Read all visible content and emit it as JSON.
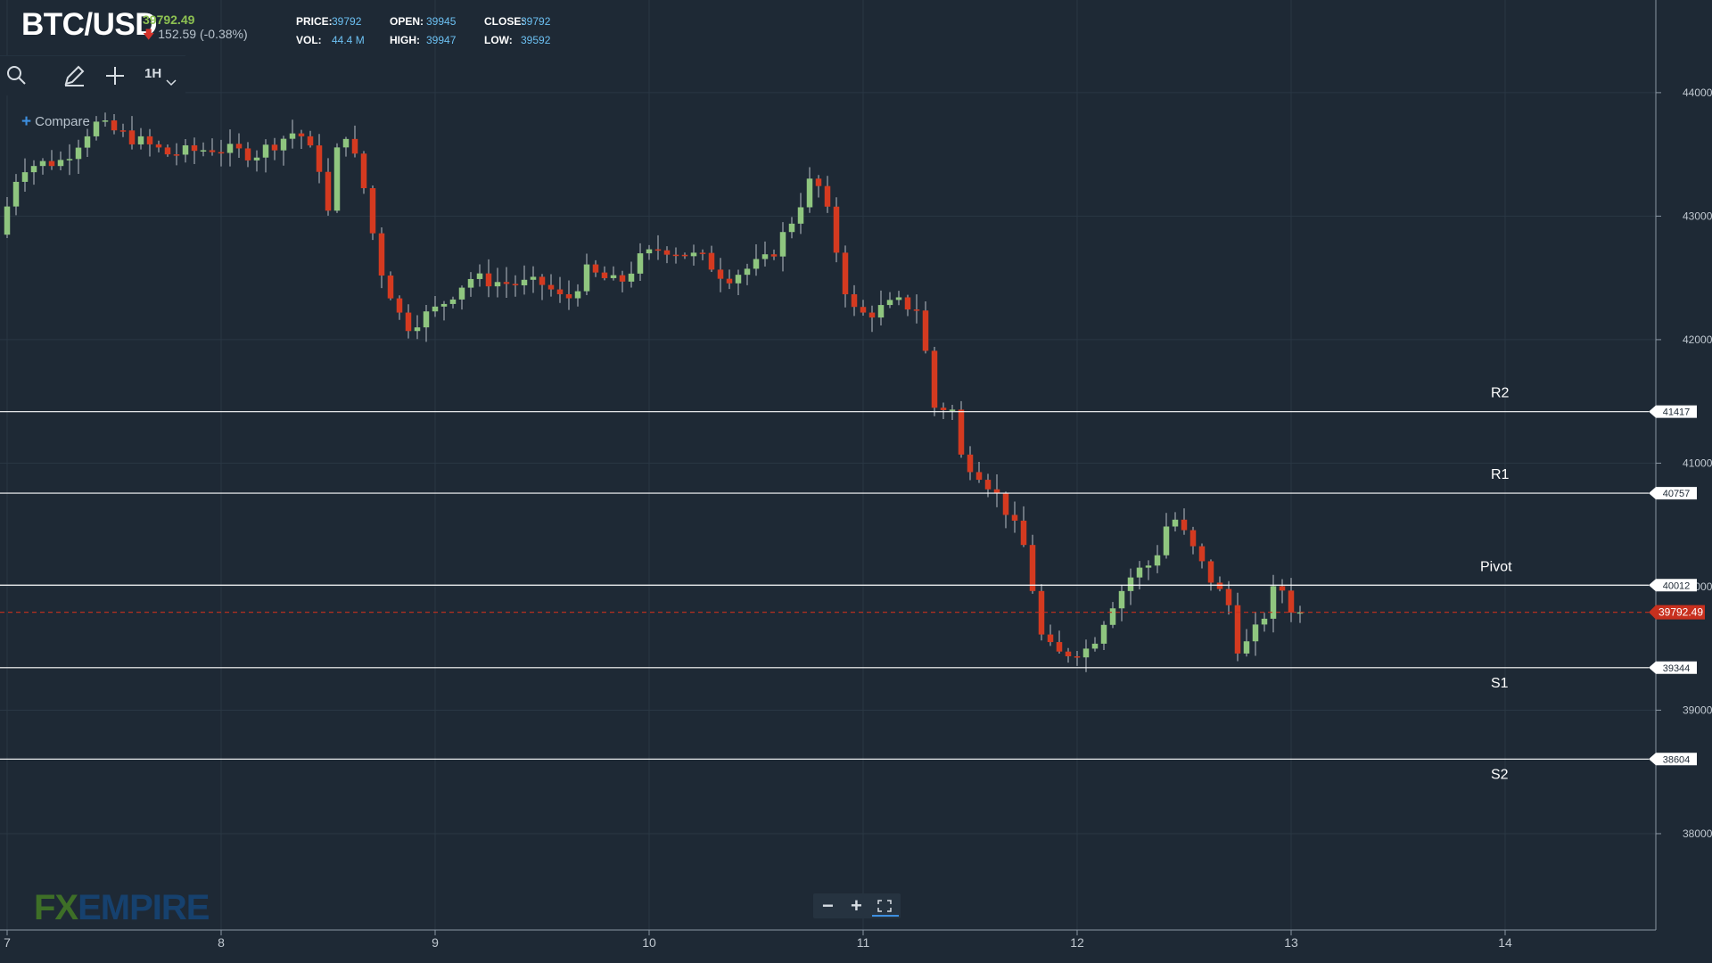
{
  "header": {
    "symbol": "BTC/USD",
    "last_price": "39792.49",
    "change": "152.59 (-0.38%)",
    "stats": {
      "price_label": "PRICE:",
      "price_value": "39792",
      "open_label": "OPEN:",
      "open_value": "39945",
      "close_label": "CLOSE:",
      "close_value": "39792",
      "vol_label": "VOL:",
      "vol_value": "44.4 M",
      "high_label": "HIGH:",
      "high_value": "39947",
      "low_label": "LOW:",
      "low_value": "39592"
    }
  },
  "toolbar": {
    "search_icon": "search-icon",
    "draw_icon": "pencil-icon",
    "crosshair_icon": "plus-icon",
    "interval_label": "1H",
    "interval_icon": "chevron-down-icon",
    "compare_label": "Compare"
  },
  "zoom_controls": {
    "zoom_out": "−",
    "zoom_in": "+",
    "fullscreen_icon": "fullscreen-icon"
  },
  "logo": {
    "part1": "FX",
    "part2": "EMPIRE"
  },
  "colors": {
    "background": "#1e2935",
    "up_candle": "#8fc67f",
    "down_candle": "#d43a20",
    "level_line": "#ffffff",
    "current_price": "#c8301e",
    "axis_text": "#c0c8d0"
  },
  "chart_data": {
    "type": "candlestick",
    "interval": "1H",
    "x_axis": {
      "ticks": [
        "7",
        "8",
        "9",
        "10",
        "11",
        "12",
        "13",
        "14"
      ],
      "range_days": [
        7,
        14.7
      ]
    },
    "y_axis": {
      "ticks": [
        38000,
        39000,
        40000,
        41000,
        42000,
        43000,
        44000
      ],
      "range": [
        37220,
        44750
      ]
    },
    "current_price": 39792.49,
    "levels": [
      {
        "name": "R2",
        "value": 41417
      },
      {
        "name": "R1",
        "value": 40757
      },
      {
        "name": "Pivot",
        "value": 40012
      },
      {
        "name": "S1",
        "value": 39344
      },
      {
        "name": "S2",
        "value": 38604
      }
    ],
    "path_points": [
      [
        7.0,
        42850
      ],
      [
        7.1,
        43400
      ],
      [
        7.3,
        43450
      ],
      [
        7.45,
        43750
      ],
      [
        7.6,
        43650
      ],
      [
        7.8,
        43500
      ],
      [
        8.0,
        43550
      ],
      [
        8.2,
        43500
      ],
      [
        8.4,
        43700
      ],
      [
        8.5,
        43400
      ],
      [
        8.55,
        42950
      ],
      [
        8.6,
        43800
      ],
      [
        8.7,
        43300
      ],
      [
        8.78,
        42600
      ],
      [
        8.9,
        42100
      ],
      [
        9.05,
        42250
      ],
      [
        9.2,
        42500
      ],
      [
        9.4,
        42450
      ],
      [
        9.55,
        42450
      ],
      [
        9.65,
        42300
      ],
      [
        9.75,
        42550
      ],
      [
        9.9,
        42450
      ],
      [
        10.0,
        42650
      ],
      [
        10.1,
        42750
      ],
      [
        10.3,
        42650
      ],
      [
        10.4,
        42500
      ],
      [
        10.6,
        42650
      ],
      [
        10.72,
        43000
      ],
      [
        10.8,
        43300
      ],
      [
        10.85,
        43200
      ],
      [
        10.92,
        42700
      ],
      [
        10.98,
        42250
      ],
      [
        11.05,
        42200
      ],
      [
        11.2,
        42300
      ],
      [
        11.3,
        42250
      ],
      [
        11.38,
        41400
      ],
      [
        11.45,
        41500
      ],
      [
        11.5,
        41050
      ],
      [
        11.6,
        40900
      ],
      [
        11.7,
        40650
      ],
      [
        11.8,
        40300
      ],
      [
        11.88,
        39550
      ],
      [
        11.95,
        39450
      ],
      [
        12.1,
        39500
      ],
      [
        12.2,
        39850
      ],
      [
        12.3,
        40100
      ],
      [
        12.4,
        40200
      ],
      [
        12.48,
        40600
      ],
      [
        12.55,
        40400
      ],
      [
        12.65,
        40100
      ],
      [
        12.75,
        39850
      ],
      [
        12.8,
        39450
      ],
      [
        12.9,
        39700
      ],
      [
        12.98,
        40050
      ],
      [
        13.05,
        39800
      ]
    ],
    "seed": 7
  }
}
